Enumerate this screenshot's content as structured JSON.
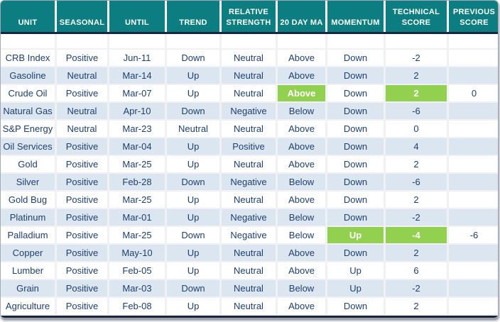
{
  "colors": {
    "header_bg": "#0C7E81",
    "header_text": "#FFFFFF",
    "divider_navy": "#16273F",
    "row_bg": "#FFFFFF",
    "row_alt_bg": "#DCE6F1",
    "data_text": "#1F3F6E",
    "highlight_green": "#92D050",
    "frame_border": "#A3A9B5"
  },
  "chart_data": {
    "type": "table",
    "columns": [
      "UNIT",
      "SEASONAL",
      "UNTIL",
      "TREND",
      "RELATIVE STRENGTH",
      "20 DAY MA",
      "MOMENTUM",
      "TECHNICAL SCORE",
      "PREVIOUS SCORE"
    ],
    "column_keys": [
      "unit",
      "seasonal",
      "until",
      "trend",
      "relative-strength",
      "20-day-ma",
      "momentum",
      "technical-score",
      "previous-score"
    ],
    "rows": [
      {
        "cells": [
          "CRB Index",
          "Positive",
          "Jun-11",
          "Down",
          "Neutral",
          "Above",
          "Down",
          "-2",
          ""
        ],
        "highlight_cols": []
      },
      {
        "cells": [
          "Gasoline",
          "Neutral",
          "Mar-14",
          "Up",
          "Neutral",
          "Above",
          "Down",
          "2",
          ""
        ],
        "highlight_cols": []
      },
      {
        "cells": [
          "Crude Oil",
          "Positive",
          "Mar-07",
          "Up",
          "Neutral",
          "Above",
          "Down",
          "2",
          "0"
        ],
        "highlight_cols": [
          5,
          7
        ]
      },
      {
        "cells": [
          "Natural Gas",
          "Neutral",
          "Apr-10",
          "Down",
          "Negative",
          "Below",
          "Down",
          "-6",
          ""
        ],
        "highlight_cols": []
      },
      {
        "cells": [
          "S&P Energy",
          "Neutral",
          "Mar-23",
          "Neutral",
          "Neutral",
          "Above",
          "Down",
          "0",
          ""
        ],
        "highlight_cols": []
      },
      {
        "cells": [
          "Oil Services",
          "Positive",
          "Mar-04",
          "Up",
          "Positive",
          "Above",
          "Down",
          "4",
          ""
        ],
        "highlight_cols": []
      },
      {
        "cells": [
          "Gold",
          "Positive",
          "Mar-25",
          "Up",
          "Neutral",
          "Above",
          "Down",
          "2",
          ""
        ],
        "highlight_cols": []
      },
      {
        "cells": [
          "Silver",
          "Positive",
          "Feb-28",
          "Down",
          "Negative",
          "Below",
          "Down",
          "-6",
          ""
        ],
        "highlight_cols": []
      },
      {
        "cells": [
          "Gold Bug",
          "Positive",
          "Mar-25",
          "Up",
          "Neutral",
          "Above",
          "Down",
          "2",
          ""
        ],
        "highlight_cols": []
      },
      {
        "cells": [
          "Platinum",
          "Positive",
          "Mar-01",
          "Up",
          "Negative",
          "Below",
          "Down",
          "-2",
          ""
        ],
        "highlight_cols": []
      },
      {
        "cells": [
          "Palladium",
          "Positive",
          "Mar-25",
          "Down",
          "Negative",
          "Below",
          "Up",
          "-4",
          "-6"
        ],
        "highlight_cols": [
          6,
          7
        ]
      },
      {
        "cells": [
          "Copper",
          "Positive",
          "May-10",
          "Up",
          "Neutral",
          "Above",
          "Down",
          "2",
          ""
        ],
        "highlight_cols": []
      },
      {
        "cells": [
          "Lumber",
          "Positive",
          "Feb-05",
          "Up",
          "Neutral",
          "Above",
          "Up",
          "6",
          ""
        ],
        "highlight_cols": []
      },
      {
        "cells": [
          "Grain",
          "Positive",
          "Mar-03",
          "Down",
          "Neutral",
          "Below",
          "Up",
          "-2",
          ""
        ],
        "highlight_cols": []
      },
      {
        "cells": [
          "Agriculture",
          "Positive",
          "Feb-08",
          "Up",
          "Neutral",
          "Above",
          "Down",
          "2",
          ""
        ],
        "highlight_cols": []
      }
    ]
  }
}
